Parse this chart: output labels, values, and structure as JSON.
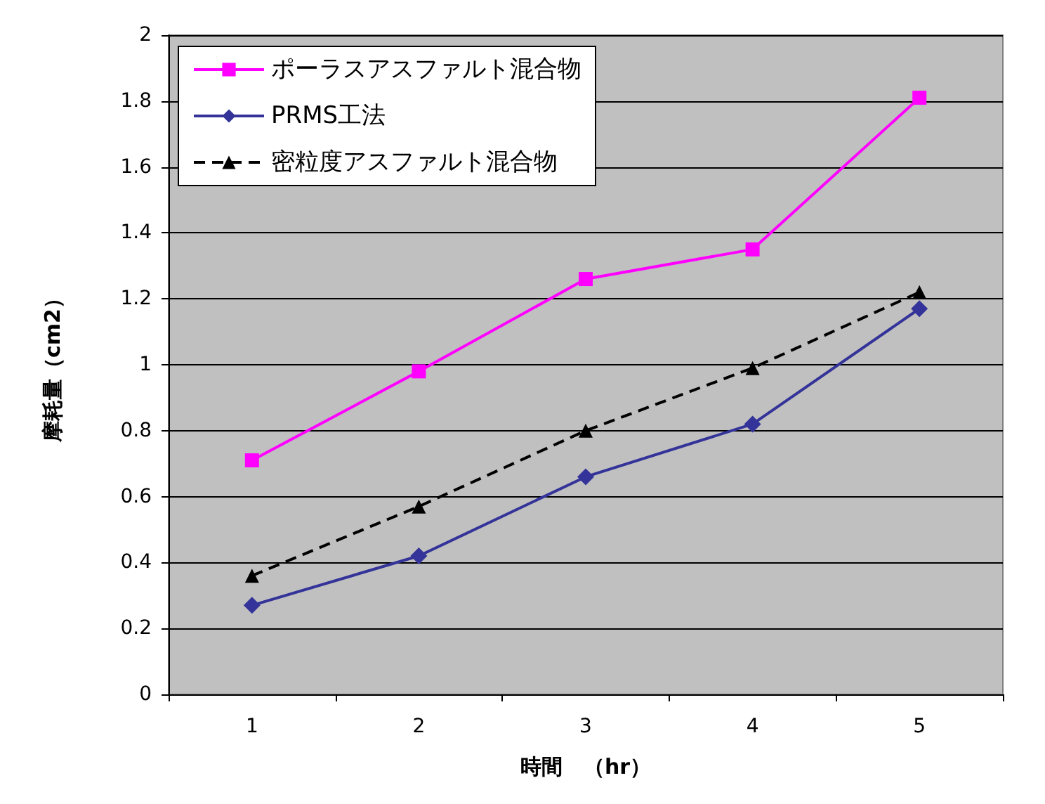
{
  "chart_data": {
    "type": "line",
    "xlabel": "時間　（hr）",
    "ylabel": "摩耗量（cm2）",
    "categories": [
      "1",
      "2",
      "3",
      "4",
      "5"
    ],
    "series": [
      {
        "name": "ポーラスアスファルト混合物",
        "color": "#ff00ff",
        "values": [
          0.71,
          0.98,
          1.26,
          1.35,
          1.81
        ],
        "marker": "square",
        "line_style": "solid"
      },
      {
        "name": "PRMS工法",
        "color": "#333399",
        "values": [
          0.27,
          0.42,
          0.66,
          0.82,
          1.17
        ],
        "marker": "diamond",
        "line_style": "solid"
      },
      {
        "name": "密粒度アスファルト混合物",
        "color": "#000000",
        "values": [
          0.36,
          0.57,
          0.8,
          0.99,
          1.22
        ],
        "marker": "triangle",
        "line_style": "dashed"
      }
    ],
    "ylim": [
      0,
      2
    ],
    "yticks": [
      0,
      0.2,
      0.4,
      0.6,
      0.8,
      1,
      1.2,
      1.4,
      1.6,
      1.8,
      2
    ],
    "grid": "y",
    "legend": "top left"
  }
}
